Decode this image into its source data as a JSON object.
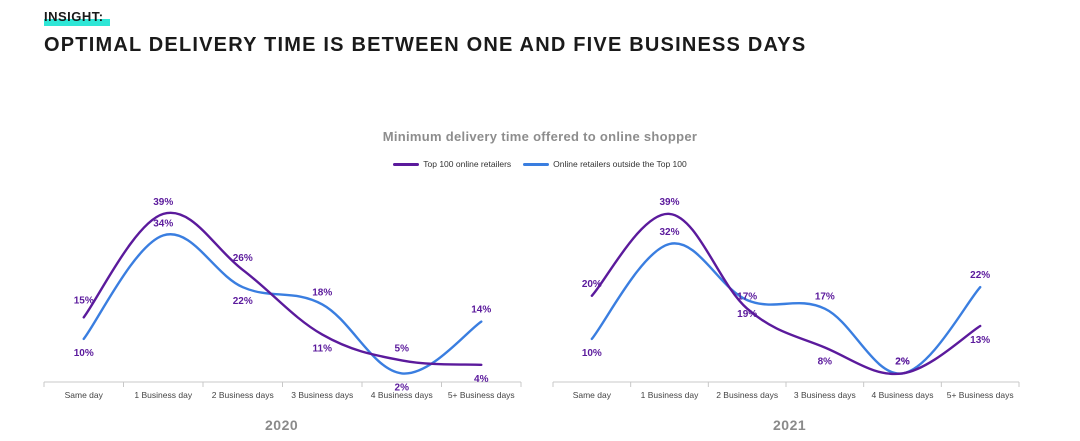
{
  "header": {
    "tag": "INSIGHT:",
    "headline": "OPTIMAL DELIVERY TIME IS BETWEEN ONE AND FIVE BUSINESS DAYS"
  },
  "chart_title": "Minimum delivery time offered to online shopper",
  "legend": [
    {
      "name": "Top 100 online retailers",
      "color": "#5b1a9c"
    },
    {
      "name": "Online retailers outside the Top 100",
      "color": "#3a7ee0"
    }
  ],
  "colors": {
    "top100": "#5b1a9c",
    "outside": "#3a7ee0",
    "label_text": "#5b1a9c",
    "axis": "#c8c8c8"
  },
  "chart_data": [
    {
      "type": "line",
      "panel_label": "2020",
      "categories": [
        "Same day",
        "1 Business day",
        "2 Business days",
        "3 Business days",
        "4 Business days",
        "5+ Business days"
      ],
      "series": [
        {
          "name": "Top 100 online retailers",
          "values": [
            15,
            39,
            26,
            11,
            5,
            4
          ],
          "labels": [
            "15%",
            "39%",
            "26%",
            "11%",
            "5%",
            "4%"
          ]
        },
        {
          "name": "Online retailers outside the Top 100",
          "values": [
            10,
            34,
            22,
            18,
            2,
            14
          ],
          "labels": [
            "10%",
            "34%",
            "22%",
            "18%",
            "2%",
            "14%"
          ]
        }
      ],
      "ylim": [
        0,
        45
      ]
    },
    {
      "type": "line",
      "panel_label": "2021",
      "categories": [
        "Same day",
        "1 Business day",
        "2 Business days",
        "3 Business days",
        "4 Business days",
        "5+ Business days"
      ],
      "series": [
        {
          "name": "Top 100 online retailers",
          "values": [
            20,
            39,
            17,
            8,
            2,
            13
          ],
          "labels": [
            "20%",
            "39%",
            "17%",
            "8%",
            "2%",
            "13%"
          ]
        },
        {
          "name": "Online retailers outside the Top 100",
          "values": [
            10,
            32,
            19,
            17,
            2,
            22
          ],
          "labels": [
            "10%",
            "32%",
            "19%",
            "17%",
            "2%",
            "22%"
          ]
        }
      ],
      "ylim": [
        0,
        45
      ]
    }
  ]
}
